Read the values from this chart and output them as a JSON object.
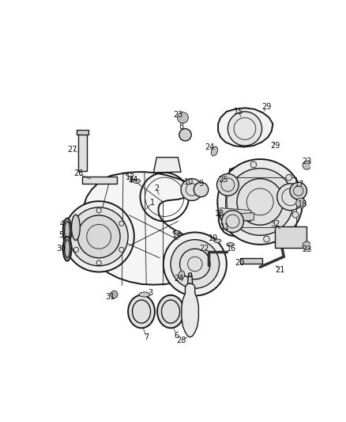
{
  "bg_color": "#ffffff",
  "fig_width": 4.38,
  "fig_height": 5.33,
  "dpi": 100,
  "line_color": "#1a1a1a",
  "label_color": "#111111",
  "label_fontsize": 7.0,
  "lw_main": 1.0,
  "lw_thin": 0.6,
  "lw_thick": 1.4
}
